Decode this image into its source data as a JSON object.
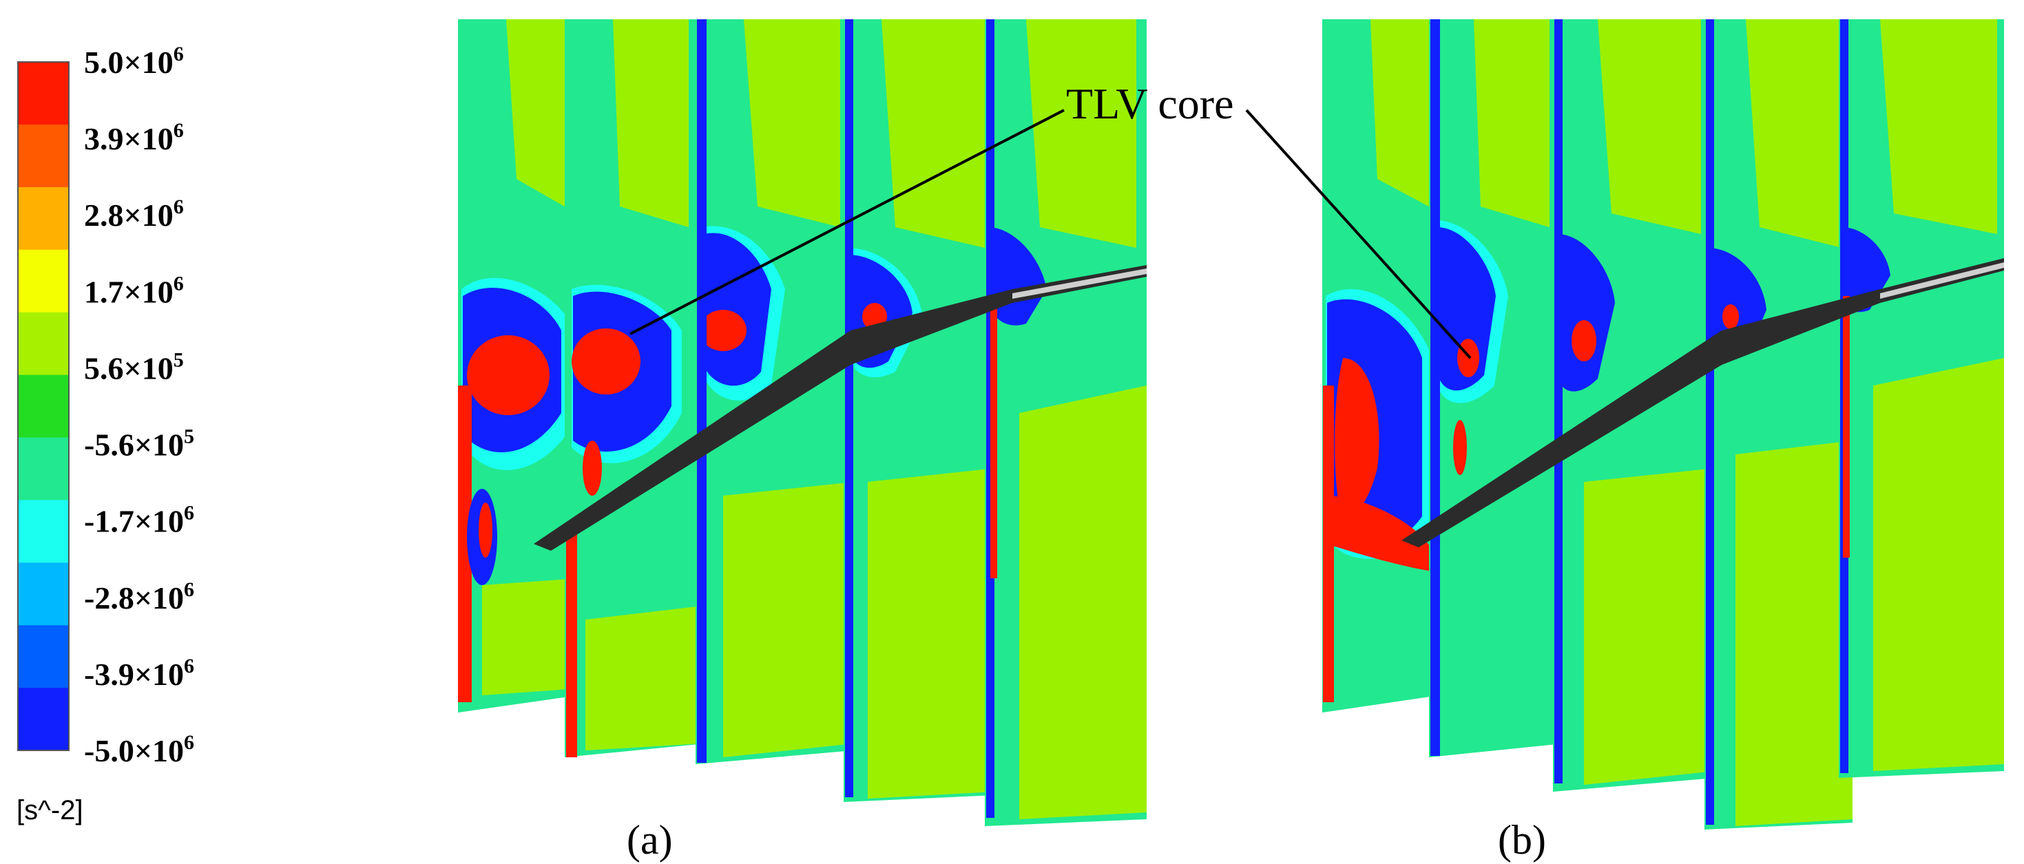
{
  "legend": {
    "labels": [
      {
        "base": "5.0×10",
        "exp": "6"
      },
      {
        "base": "3.9×10",
        "exp": "6"
      },
      {
        "base": "2.8×10",
        "exp": "6"
      },
      {
        "base": "1.7×10",
        "exp": "6"
      },
      {
        "base": "5.6×10",
        "exp": "5"
      },
      {
        "base": "-5.6×10",
        "exp": "5"
      },
      {
        "base": "-1.7×10",
        "exp": "6"
      },
      {
        "base": "-2.8×10",
        "exp": "6"
      },
      {
        "base": "-3.9×10",
        "exp": "6"
      },
      {
        "base": "-5.0×10",
        "exp": "6"
      }
    ],
    "colors": [
      "#ff1a00",
      "#ff5a00",
      "#ffb000",
      "#f4ff00",
      "#a6f000",
      "#22dd22",
      "#22e890",
      "#1afff0",
      "#00b8ff",
      "#0060ff",
      "#1020ff"
    ],
    "unit": "[s^-2]"
  },
  "annotations": {
    "tlv_core": "TLV core"
  },
  "panels": {
    "a": "(a)",
    "b": "(b)"
  },
  "colors": {
    "field_green": "#22e890",
    "field_lime": "#9bf000",
    "vortex_red": "#ff1a00",
    "vortex_blue": "#1020ff",
    "cyan": "#1afff0",
    "blade": "#2b2b2b"
  }
}
